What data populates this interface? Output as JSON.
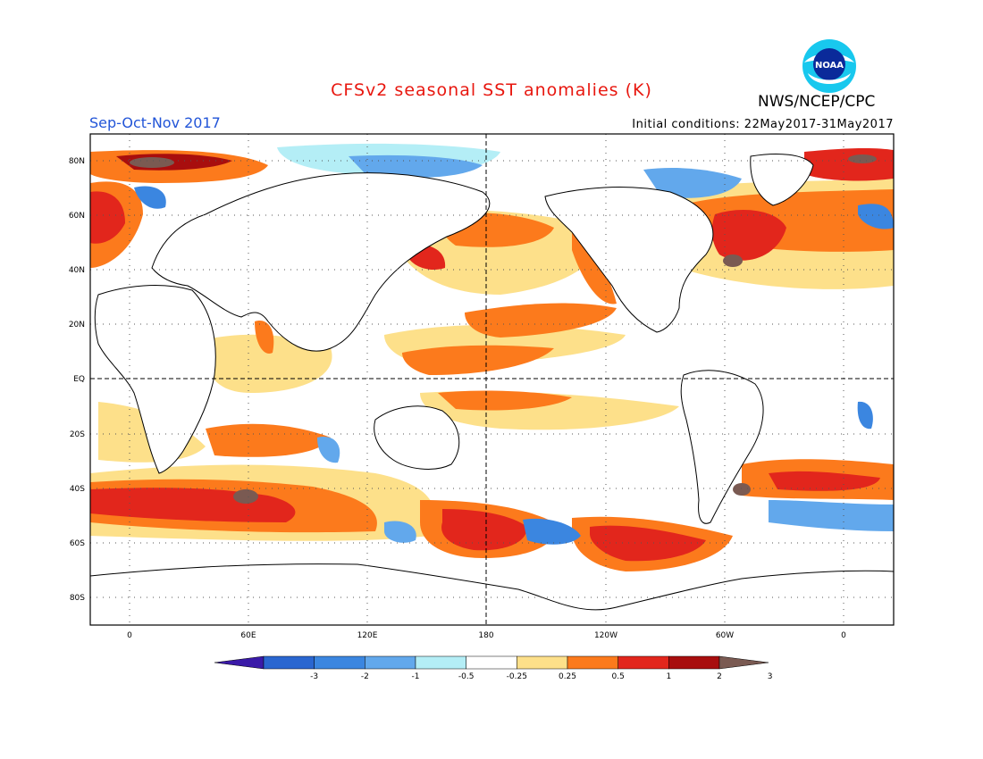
{
  "header": {
    "title": "CFSv2 seasonal SST anomalies (K)",
    "organization": "NWS/NCEP/CPC",
    "logo_text": "NOAA",
    "season": "Sep-Oct-Nov 2017",
    "initial_conditions": "Initial conditions: 22May2017-31May2017"
  },
  "map": {
    "lat_ticks": [
      "80N",
      "60N",
      "40N",
      "20N",
      "EQ",
      "20S",
      "40S",
      "60S",
      "80S"
    ],
    "lon_ticks": [
      "0",
      "60E",
      "120E",
      "180",
      "120W",
      "60W",
      "0"
    ]
  },
  "colorbar": {
    "labels": [
      "-3",
      "-2",
      "-1",
      "-0.5",
      "-0.25",
      "0.25",
      "0.5",
      "1",
      "2",
      "3"
    ],
    "colors": [
      "#3a1aa8",
      "#2a66d0",
      "#3b86e0",
      "#62a8ec",
      "#b4eef6",
      "#ffffff",
      "#fde08a",
      "#fc7a1c",
      "#e2261c",
      "#a80e0e",
      "#7a5a52"
    ]
  },
  "colors": {
    "title": "#e8170f",
    "season": "#2255d8"
  }
}
